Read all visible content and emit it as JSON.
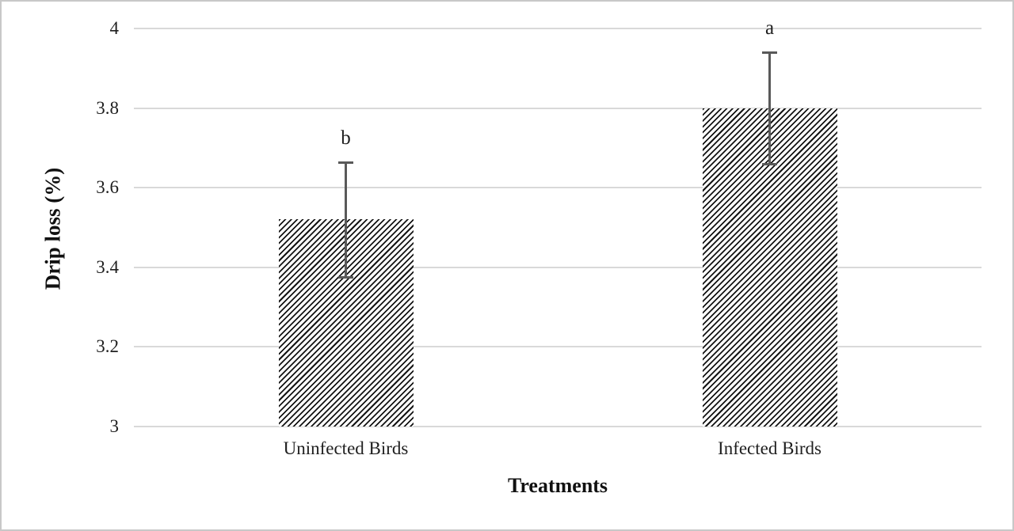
{
  "chart_data": {
    "type": "bar",
    "title": "",
    "xlabel": "Treatments",
    "ylabel": "Drip loss (%)",
    "categories": [
      "Uninfected Birds",
      "Infected Birds"
    ],
    "values": [
      3.52,
      3.8
    ],
    "errors": [
      0.145,
      0.14
    ],
    "sig_labels": [
      "b",
      "a"
    ],
    "ylim": [
      3,
      4
    ],
    "yticks": [
      3,
      3.2,
      3.4,
      3.6,
      3.8,
      4
    ],
    "ytick_labels": [
      "3",
      "3.2",
      "3.4",
      "3.6",
      "3.8",
      "4"
    ],
    "grid": true,
    "legend_position": "none",
    "bar_fill": "diagonal-hatch",
    "colors": {
      "hatch_foreground": "#141414",
      "hatch_background": "#ffffff",
      "gridline": "#d9d9d9",
      "error_bar": "#595959",
      "text": "#1f1f1f",
      "frame_border": "#c8c8c8"
    }
  }
}
